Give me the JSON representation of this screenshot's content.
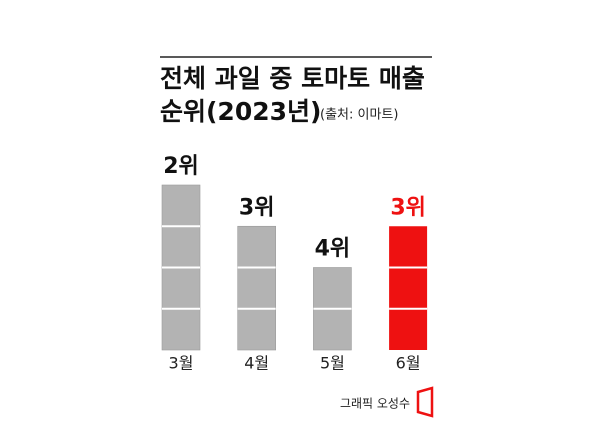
{
  "chart_data": {
    "type": "bar",
    "title": [
      "전체 과일 중 토마토 매출",
      "순위(2023년)"
    ],
    "source": "(출처: 이마트)",
    "credit": "그래픽 오성수",
    "categories": [
      "3월",
      "4월",
      "5월",
      "6월"
    ],
    "values": [
      2,
      3,
      4,
      3
    ],
    "value_labels": [
      "2위",
      "3위",
      "4위",
      "3위"
    ],
    "colors": [
      "#b3b3b3",
      "#b3b3b3",
      "#b3b3b3",
      "#ee1111"
    ],
    "label_colors": [
      "#111111",
      "#111111",
      "#111111",
      "#ee1111"
    ],
    "ylim": [
      6,
      2
    ]
  }
}
